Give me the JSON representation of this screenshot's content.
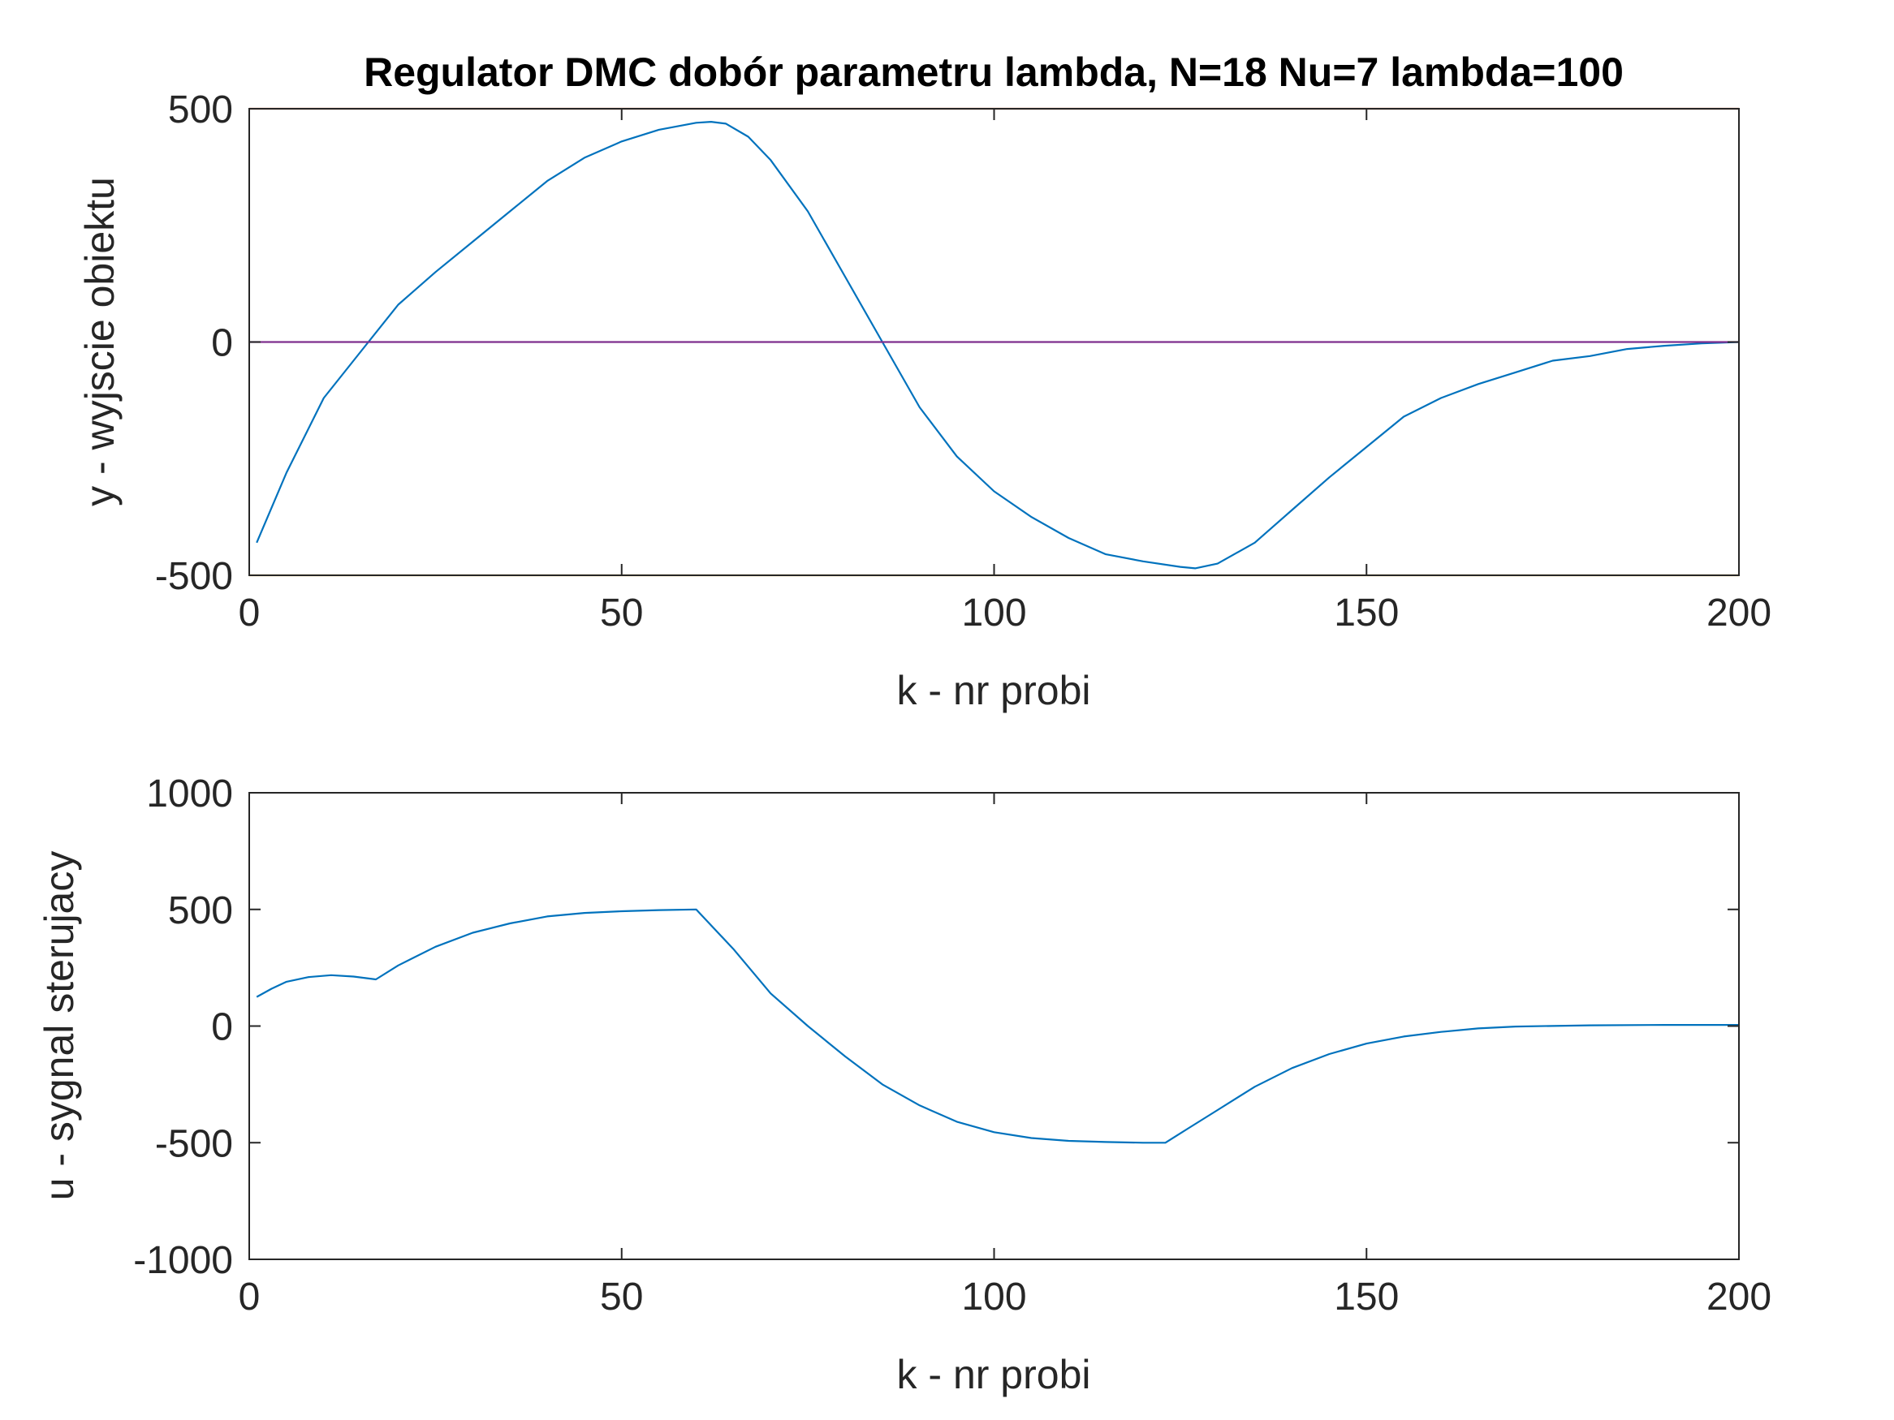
{
  "chart_data": [
    {
      "type": "line",
      "title": "Regulator DMC dobór parametru lambda, N=18 Nu=7 lambda=100",
      "xlabel": "k - nr probi",
      "ylabel": "y - wyjscie obiektu",
      "xlim": [
        0,
        200
      ],
      "ylim": [
        -500,
        500
      ],
      "xticks": [
        "0",
        "50",
        "100",
        "150",
        "200"
      ],
      "yticks": [
        "-500",
        "0",
        "500"
      ],
      "grid": false,
      "series": [
        {
          "color": "#0072BD",
          "x": [
            1,
            5,
            10,
            15,
            20,
            25,
            30,
            35,
            40,
            45,
            50,
            55,
            60,
            62,
            64,
            67,
            70,
            75,
            80,
            85,
            90,
            95,
            100,
            105,
            110,
            115,
            120,
            125,
            127,
            130,
            135,
            140,
            145,
            150,
            155,
            160,
            165,
            170,
            175,
            180,
            185,
            190,
            195,
            200
          ],
          "y": [
            -430,
            -280,
            -120,
            -20,
            80,
            150,
            215,
            280,
            345,
            395,
            430,
            455,
            470,
            472,
            468,
            440,
            390,
            280,
            140,
            0,
            -140,
            -245,
            -320,
            -375,
            -420,
            -455,
            -470,
            -482,
            -485,
            -475,
            -430,
            -360,
            -290,
            -225,
            -160,
            -120,
            -90,
            -65,
            -40,
            -30,
            -15,
            -8,
            -3,
            0
          ]
        },
        {
          "color": "#D95319",
          "x": [
            0,
            200
          ],
          "y": [
            500,
            500
          ]
        },
        {
          "color": "#EDB120",
          "x": [
            0,
            200
          ],
          "y": [
            -500,
            -500
          ]
        },
        {
          "color": "#7E2F8E",
          "x": [
            0,
            200
          ],
          "y": [
            0,
            0
          ]
        }
      ]
    },
    {
      "type": "line",
      "title": "",
      "xlabel": "k - nr probi",
      "ylabel": "u - sygnal sterujacy",
      "xlim": [
        0,
        200
      ],
      "ylim": [
        -1000,
        1000
      ],
      "xticks": [
        "0",
        "50",
        "100",
        "150",
        "200"
      ],
      "yticks": [
        "-1000",
        "-500",
        "0",
        "500",
        "1000"
      ],
      "grid": false,
      "series": [
        {
          "color": "#0072BD",
          "x": [
            1,
            3,
            5,
            8,
            11,
            14,
            17,
            20,
            25,
            30,
            35,
            40,
            45,
            50,
            55,
            60,
            65,
            70,
            75,
            80,
            85,
            90,
            95,
            100,
            105,
            110,
            115,
            120,
            123,
            126,
            130,
            135,
            140,
            145,
            150,
            155,
            160,
            165,
            170,
            180,
            190,
            200
          ],
          "y": [
            125,
            160,
            190,
            210,
            218,
            212,
            200,
            260,
            340,
            400,
            440,
            470,
            485,
            492,
            497,
            500,
            330,
            140,
            0,
            -130,
            -250,
            -340,
            -410,
            -455,
            -480,
            -492,
            -497,
            -500,
            -500,
            -440,
            -360,
            -260,
            -180,
            -120,
            -75,
            -45,
            -25,
            -10,
            -2,
            3,
            5,
            5
          ]
        }
      ]
    }
  ]
}
